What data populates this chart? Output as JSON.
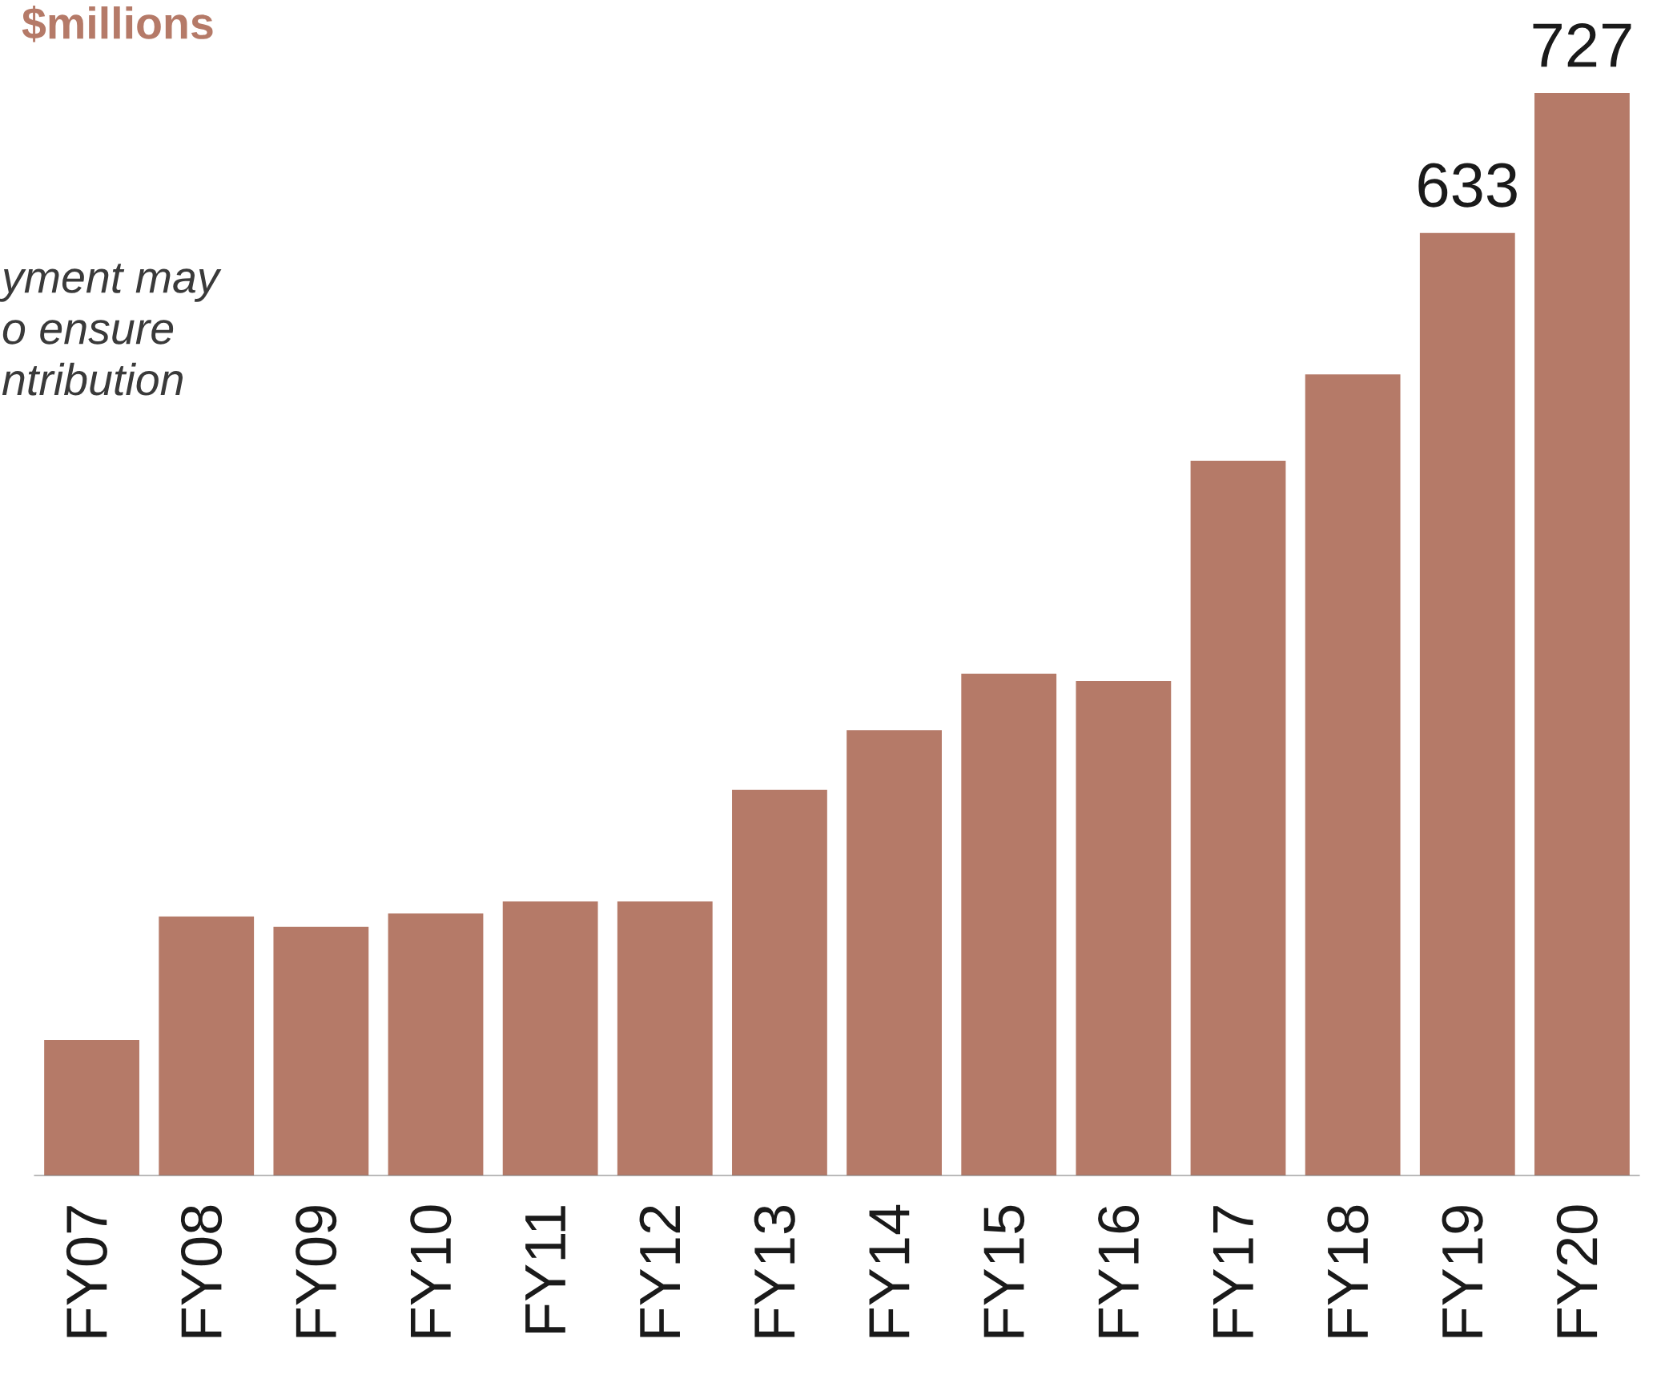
{
  "chart_data": {
    "type": "bar",
    "title": "$millions",
    "annotations": [
      "yment may\no ensure\nntribution"
    ],
    "categories": [
      "FY07",
      "FY08",
      "FY09",
      "FY10",
      "FY11",
      "FY12",
      "FY13",
      "FY14",
      "FY15",
      "FY16",
      "FY17",
      "FY18",
      "FY19",
      "FY20"
    ],
    "values": [
      91,
      174,
      167,
      176,
      184,
      184,
      259,
      299,
      337,
      332,
      480,
      538,
      633,
      727
    ],
    "value_labels": [
      null,
      null,
      null,
      null,
      null,
      null,
      null,
      null,
      null,
      null,
      null,
      null,
      "633",
      "727"
    ],
    "color": "#b57a68",
    "grid": false,
    "legend": false
  }
}
